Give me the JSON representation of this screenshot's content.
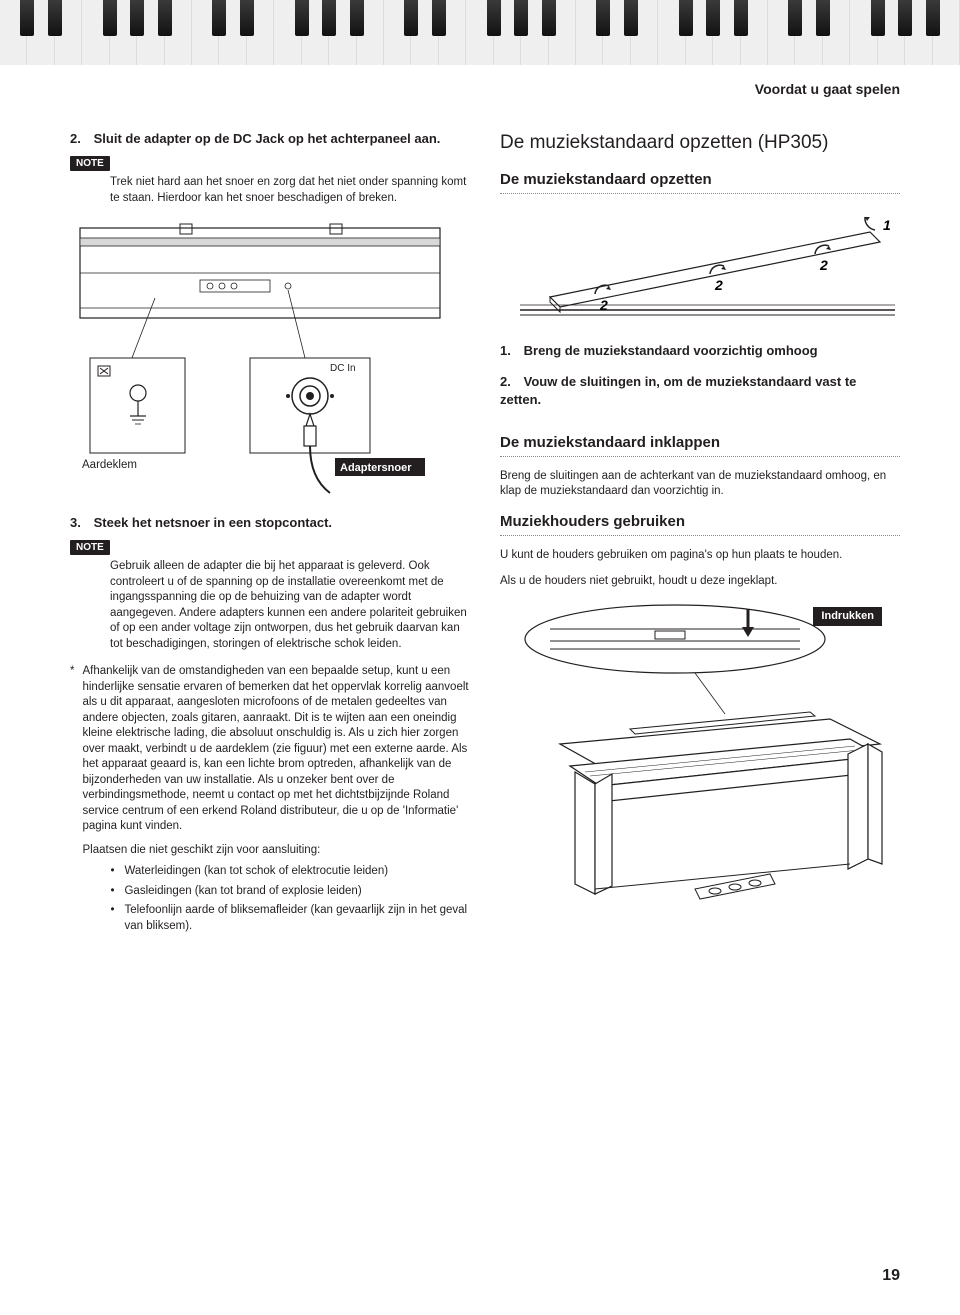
{
  "header": {
    "section_title": "Voordat u gaat spelen"
  },
  "left": {
    "step2_num": "2.",
    "step2_text": "Sluit de adapter op de DC Jack op het achterpaneel aan.",
    "note1_label": "NOTE",
    "note1_body": "Trek niet hard aan het snoer en zorg dat het niet onder spanning komt te staan. Hierdoor kan het snoer beschadigen of breken.",
    "diagram_labels": {
      "dc_in": "DC In",
      "ground": "Aardeklem",
      "adapter_cord": "Adaptersnoer"
    },
    "step3_num": "3.",
    "step3_text": "Steek het netsnoer in een stopcontact.",
    "note2_label": "NOTE",
    "note2_body": "Gebruik alleen de adapter die bij het apparaat is geleverd. Ook controleert u of de spanning op de installatie overeenkomt met de ingangsspanning die op de behuizing van de adapter wordt aangegeven. Andere adapters kunnen een andere polariteit gebruiken of op een ander voltage zijn ontworpen, dus het gebruik daarvan kan tot beschadigingen, storingen of elektrische schok leiden.",
    "footnote_star": "*",
    "footnote_body": "Afhankelijk van de omstandigheden van een bepaalde setup, kunt u een hinderlijke sensatie ervaren of bemerken dat het oppervlak korrelig aanvoelt als u dit apparaat, aangesloten microfoons of de metalen gedeeltes van andere objecten, zoals gitaren, aanraakt. Dit is te wijten aan een oneindig kleine elektrische lading, die absoluut onschuldig is. Als u zich hier zorgen over maakt, verbindt u de aardeklem (zie figuur) met een externe aarde. Als het apparaat geaard is, kan een lichte brom optreden, afhankelijk van de bijzonderheden van uw installatie. Als u onzeker bent over de verbindingsmethode, neemt u contact op met het dichtstbijzijnde Roland service centrum of een erkend Roland distributeur, die u op de 'Informatie' pagina kunt vinden.",
    "unsuitable_heading": "Plaatsen die niet geschikt zijn voor aansluiting:",
    "unsuitable_items": [
      "Waterleidingen (kan tot schok of elektrocutie leiden)",
      "Gasleidingen (kan tot brand of explosie leiden)",
      "Telefoonlijn aarde of bliksemafleider (kan gevaarlijk zijn in het geval van bliksem)."
    ]
  },
  "right": {
    "h1": "De muziekstandaard opzetten (HP305)",
    "h2a": "De muziekstandaard opzetten",
    "stand_step1_num": "1.",
    "stand_step1_text": "Breng de muziekstandaard voorzichtig omhoog",
    "stand_step2_num": "2.",
    "stand_step2_text": "Vouw de sluitingen in, om de muziekstandaard vast te zetten.",
    "h2b": "De muziekstandaard inklappen",
    "inklappen_body": "Breng de sluitingen aan de achterkant van de muziekstandaard omhoog, en klap de muziekstandaard dan voorzichtig in.",
    "h2c": "Muziekhouders gebruiken",
    "houders_body1": "U kunt de houders gebruiken om pagina's op hun plaats te houden.",
    "houders_body2": "Als u de houders niet gebruikt, houdt u deze ingeklapt.",
    "press_label": "Indrukken"
  },
  "page_number": "19",
  "colors": {
    "text": "#231f20",
    "dotted": "#888888",
    "badge_bg": "#231f20",
    "badge_fg": "#ffffff"
  }
}
